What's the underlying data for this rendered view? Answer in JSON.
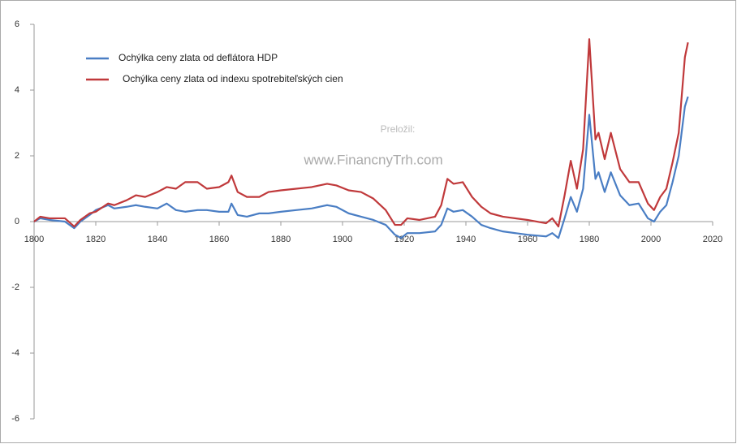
{
  "chart_data": {
    "type": "line",
    "annotations": [
      "Preložil:",
      "www.FinancnyTrh.com"
    ],
    "x": [
      1800,
      1802,
      1805,
      1810,
      1813,
      1815,
      1818,
      1820,
      1824,
      1826,
      1830,
      1833,
      1836,
      1840,
      1843,
      1846,
      1849,
      1853,
      1856,
      1860,
      1863,
      1864,
      1866,
      1869,
      1873,
      1876,
      1880,
      1885,
      1890,
      1895,
      1898,
      1902,
      1906,
      1910,
      1914,
      1917,
      1919,
      1921,
      1925,
      1930,
      1932,
      1934,
      1936,
      1939,
      1942,
      1945,
      1948,
      1952,
      1960,
      1966,
      1968,
      1970,
      1972,
      1974,
      1976,
      1978,
      1980,
      1982,
      1983,
      1985,
      1987,
      1990,
      1993,
      1996,
      1999,
      2001,
      2003,
      2005,
      2007,
      2009,
      2011,
      2012
    ],
    "series": [
      {
        "name": "Ochýlka ceny zlata od deflátora HDP",
        "color": "#4a7ec4",
        "values": [
          0,
          0.1,
          0.05,
          0,
          -0.2,
          0,
          0.2,
          0.35,
          0.5,
          0.4,
          0.45,
          0.5,
          0.45,
          0.4,
          0.55,
          0.35,
          0.3,
          0.35,
          0.35,
          0.3,
          0.3,
          0.55,
          0.2,
          0.15,
          0.25,
          0.25,
          0.3,
          0.35,
          0.4,
          0.5,
          0.45,
          0.25,
          0.15,
          0.05,
          -0.1,
          -0.4,
          -0.5,
          -0.35,
          -0.35,
          -0.3,
          -0.1,
          0.4,
          0.3,
          0.35,
          0.15,
          -0.1,
          -0.2,
          -0.3,
          -0.4,
          -0.45,
          -0.35,
          -0.5,
          0.1,
          0.75,
          0.3,
          1.0,
          3.25,
          1.3,
          1.5,
          0.9,
          1.5,
          0.8,
          0.5,
          0.55,
          0.1,
          0,
          0.3,
          0.5,
          1.2,
          2.0,
          3.5,
          3.8
        ]
      },
      {
        "name": "Ochýlka ceny zlata od indexu spotrebiteľských cien",
        "color": "#c0393b",
        "values": [
          0,
          0.15,
          0.1,
          0.1,
          -0.15,
          0.05,
          0.25,
          0.3,
          0.55,
          0.5,
          0.65,
          0.8,
          0.75,
          0.9,
          1.05,
          1.0,
          1.2,
          1.2,
          1.0,
          1.05,
          1.2,
          1.4,
          0.9,
          0.75,
          0.75,
          0.9,
          0.95,
          1.0,
          1.05,
          1.15,
          1.1,
          0.95,
          0.9,
          0.7,
          0.35,
          -0.1,
          -0.1,
          0.1,
          0.05,
          0.15,
          0.5,
          1.3,
          1.15,
          1.2,
          0.75,
          0.45,
          0.25,
          0.15,
          0.05,
          -0.05,
          0.1,
          -0.15,
          0.8,
          1.85,
          1.0,
          2.2,
          5.55,
          2.5,
          2.7,
          1.9,
          2.7,
          1.6,
          1.2,
          1.2,
          0.55,
          0.35,
          0.75,
          1.0,
          1.8,
          2.7,
          5.0,
          5.45
        ]
      }
    ],
    "xlim": [
      1800,
      2020
    ],
    "xticks": [
      1800,
      1820,
      1840,
      1860,
      1880,
      1900,
      1920,
      1940,
      1960,
      1980,
      2000,
      2020
    ],
    "ylim": [
      -6,
      6
    ],
    "yticks": [
      6,
      4,
      2,
      0,
      -2,
      -4,
      -6
    ],
    "legend": "upper-left"
  }
}
